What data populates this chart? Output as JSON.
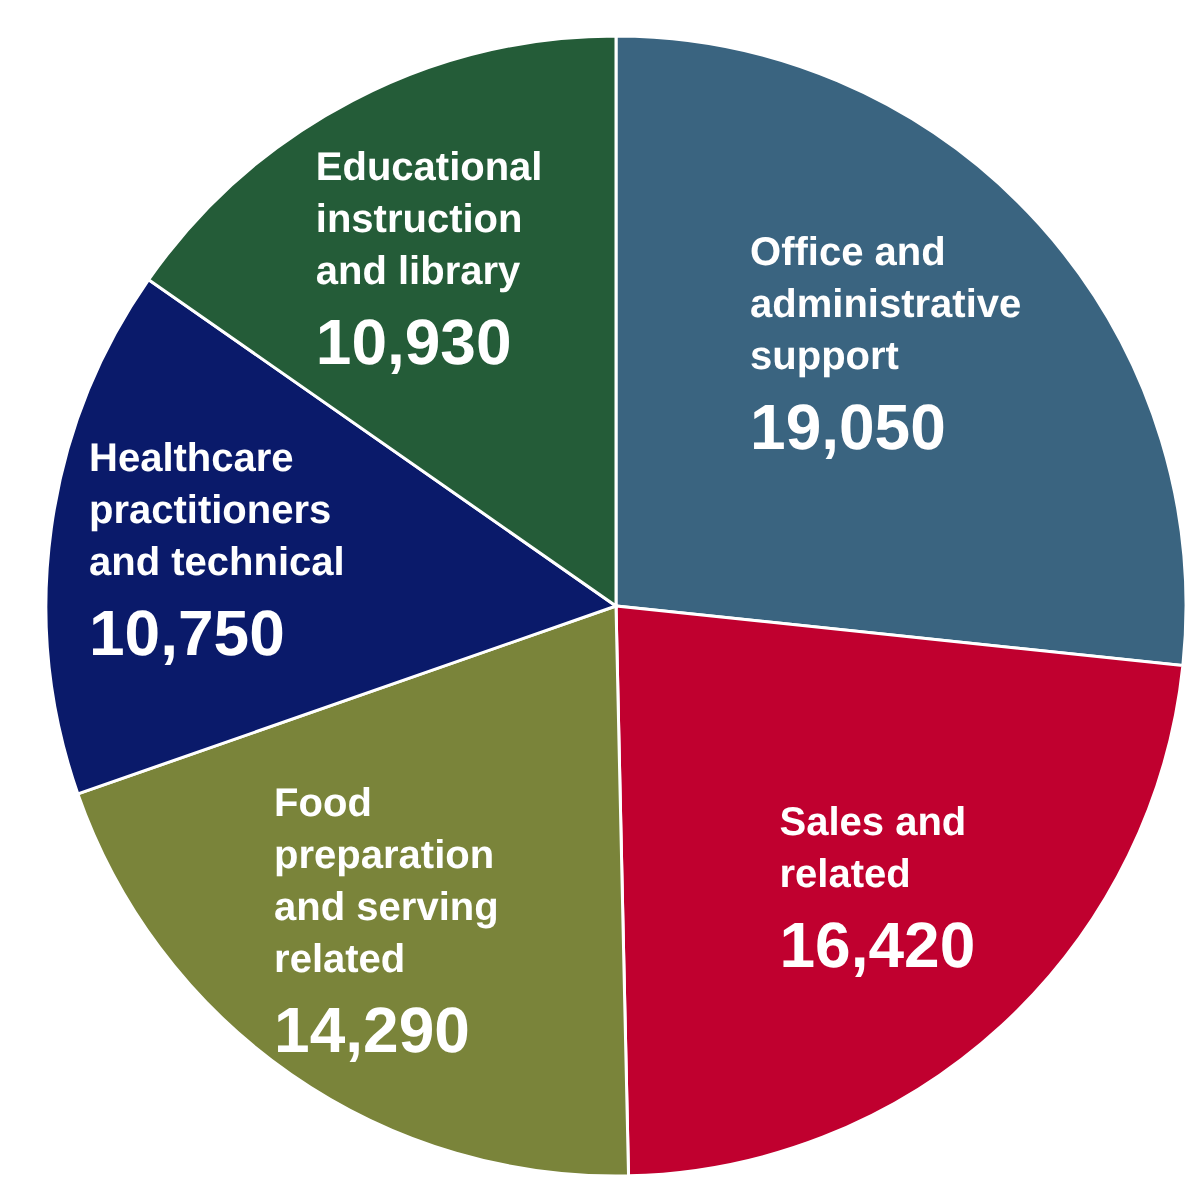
{
  "chart_data": {
    "type": "pie",
    "categories": [
      "Office and administrative support",
      "Sales and related",
      "Food preparation and serving related",
      "Healthcare practitioners and technical",
      "Educational instruction and library"
    ],
    "values": [
      19050,
      16420,
      14290,
      10750,
      10930
    ],
    "colors": [
      "#3a6480",
      "#c0002f",
      "#7a843a",
      "#0a1a6a",
      "#245c38"
    ],
    "value_labels": [
      "19,050",
      "16,420",
      "14,290",
      "10,750",
      "10,930"
    ],
    "legend": false
  }
}
